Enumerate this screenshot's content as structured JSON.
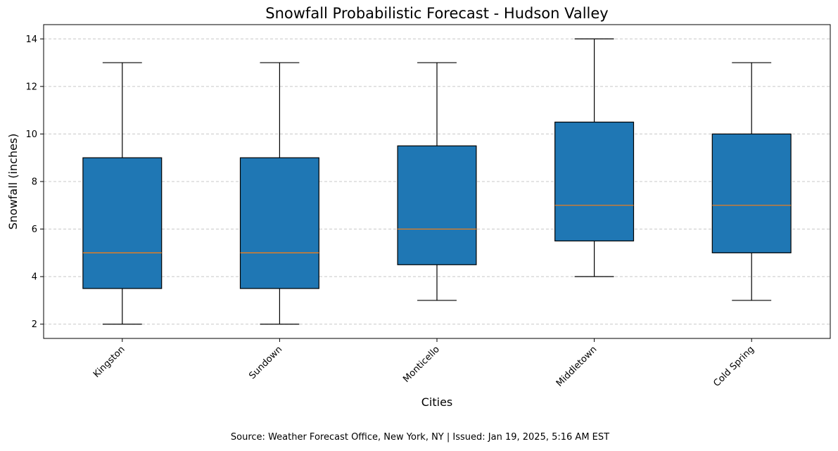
{
  "chart_data": {
    "type": "box",
    "title": "Snowfall Probabilistic Forecast - Hudson Valley",
    "xlabel": "Cities",
    "ylabel": "Snowfall (inches)",
    "ylim": [
      1.4,
      14.6
    ],
    "yticks": [
      2,
      4,
      6,
      8,
      10,
      12,
      14
    ],
    "grid": "y-axis dashed",
    "categories": [
      "Kingston",
      "Sundown",
      "Monticello",
      "Middletown",
      "Cold Spring"
    ],
    "boxes": [
      {
        "category": "Kingston",
        "min": 2,
        "q1": 3.5,
        "median": 5,
        "q3": 9,
        "max": 13
      },
      {
        "category": "Sundown",
        "min": 2,
        "q1": 3.5,
        "median": 5,
        "q3": 9,
        "max": 13
      },
      {
        "category": "Monticello",
        "min": 3,
        "q1": 4.5,
        "median": 6,
        "q3": 9.5,
        "max": 13
      },
      {
        "category": "Middletown",
        "min": 4,
        "q1": 5.5,
        "median": 7,
        "q3": 10.5,
        "max": 14
      },
      {
        "category": "Cold Spring",
        "min": 3,
        "q1": 5,
        "median": 7,
        "q3": 10,
        "max": 13
      }
    ],
    "colors": {
      "box_fill": "#1f77b4",
      "median": "#ff7f0e",
      "grid": "#c8c8c8"
    }
  },
  "footer": {
    "source": "Source: Weather Forecast Office, New York, NY | Issued: Jan 19, 2025, 5:16 AM EST"
  }
}
